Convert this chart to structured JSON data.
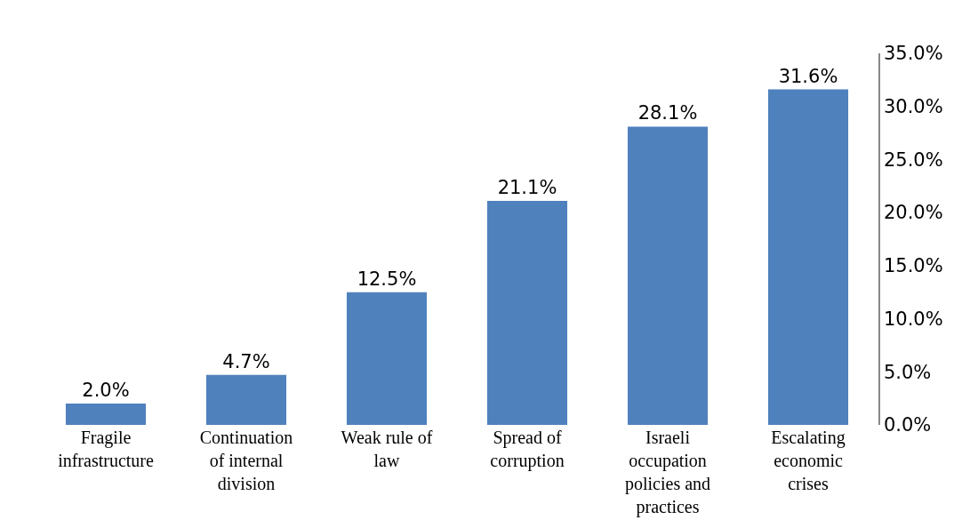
{
  "chart_data": {
    "type": "bar",
    "categories": [
      "Fragile infrastructure",
      "Continuation of internal division",
      "Weak rule of law",
      "Spread of corruption",
      "Israeli occupation policies and practices",
      "Escalating economic crises"
    ],
    "values": [
      2.0,
      4.7,
      12.5,
      21.1,
      28.1,
      31.6
    ],
    "value_labels": [
      "2.0%",
      "4.7%",
      "12.5%",
      "21.1%",
      "28.1%",
      "31.6%"
    ],
    "color": "#4f81bd",
    "ylim": [
      0,
      35
    ],
    "yticks": [
      {
        "value": 0,
        "label": "0.0%"
      },
      {
        "value": 5,
        "label": "5.0%"
      },
      {
        "value": 10,
        "label": "10.0%"
      },
      {
        "value": 15,
        "label": "15.0%"
      },
      {
        "value": 20,
        "label": "20.0%"
      },
      {
        "value": 25,
        "label": "25.0%"
      },
      {
        "value": 30,
        "label": "30.0%"
      },
      {
        "value": 35,
        "label": "35.0%"
      }
    ],
    "grid": false
  }
}
